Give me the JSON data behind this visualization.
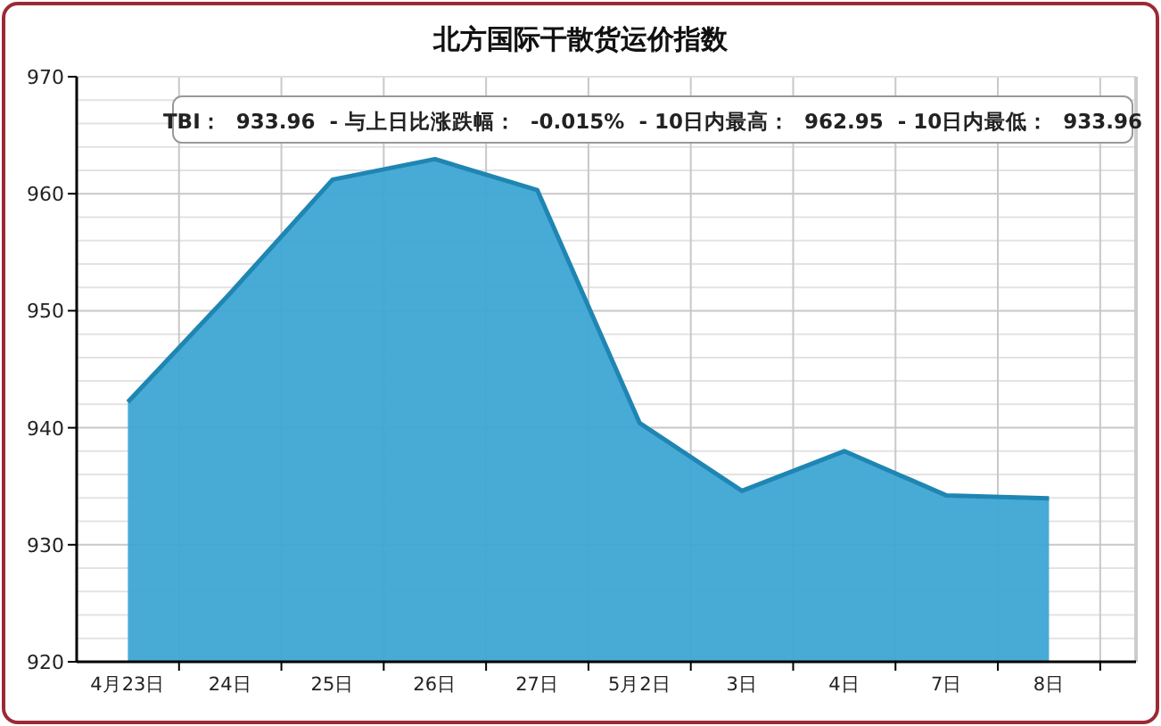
{
  "chart_data": {
    "type": "area",
    "title": "北方国际干散货运价指数",
    "categories": [
      "4月23日",
      "24日",
      "25日",
      "26日",
      "27日",
      "5月2日",
      "3日",
      "4日",
      "7日",
      "8日"
    ],
    "series": [
      {
        "color": "#3ea6d3",
        "values": [
          942.2,
          951.5,
          961.2,
          962.95,
          960.3,
          940.4,
          934.6,
          938.0,
          934.2,
          933.96
        ]
      }
    ],
    "ylim": [
      920,
      970
    ],
    "yticks": [
      920,
      930,
      940,
      950,
      960,
      970
    ],
    "grid": true,
    "annotations": [
      "TBI：  933.96  - 与上日比涨跌幅：  -0.015%  - 10日内最高：  962.95  - 10日内最低：  933.96"
    ]
  }
}
